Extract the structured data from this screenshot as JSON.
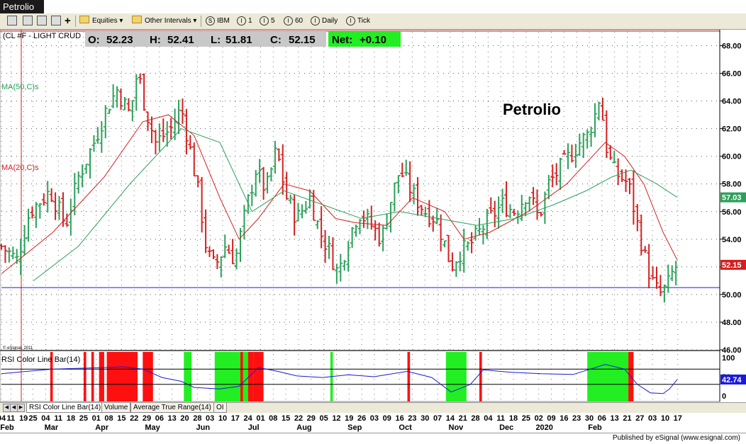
{
  "window": {
    "title": "Petrolio"
  },
  "toolbar": {
    "equities": "Equities",
    "other_intervals": "Other Intervals",
    "buttons": [
      {
        "icon": "S",
        "label": "IBM"
      },
      {
        "icon": "I",
        "label": "1"
      },
      {
        "icon": "I",
        "label": "5"
      },
      {
        "icon": "I",
        "label": "60"
      },
      {
        "icon": "I",
        "label": "Daily"
      },
      {
        "icon": "I",
        "label": "Tick"
      }
    ]
  },
  "chart_header": {
    "symbol": "(CL #F - LIGHT CRUD",
    "open_label": "O:",
    "open": "52.23",
    "high_label": "H:",
    "high": "52.41",
    "low_label": "L:",
    "low": "51.81",
    "close_label": "C:",
    "close": "52.15",
    "net_label": "Net:",
    "net": "+0.10",
    "ma50_label": "MA(50,C)s",
    "ma20_label": "MA(20,C)s",
    "annotation": "Petrolio",
    "copyright": "© eSignal, 2011"
  },
  "chart_data": [
    {
      "type": "bar",
      "subtype": "ohlc",
      "title": "Petrolio",
      "instrument": "(CL #F - LIGHT CRUD",
      "ylim": [
        46,
        69
      ],
      "y_ticks": [
        "46.00",
        "48.00",
        "50.00",
        "52.00",
        "54.00",
        "56.00",
        "58.00",
        "60.00",
        "62.00",
        "64.00",
        "66.00",
        "68.00"
      ],
      "last_labels": {
        "ma50": "57.03",
        "close": "52.15"
      },
      "colors": {
        "up": "#2ca05a",
        "down": "#d42020",
        "ma20": "#d42020",
        "ma50": "#2ca05a",
        "support": "#1a1ad8"
      },
      "support_level": 50.5,
      "bars": [
        {
          "day": 0,
          "close": 53.5
        },
        {
          "day": 12,
          "close": 52.5
        },
        {
          "day": 22,
          "close": 56.0
        },
        {
          "day": 38,
          "close": 57.5
        },
        {
          "day": 50,
          "close": 55.0
        },
        {
          "day": 60,
          "close": 58.5
        },
        {
          "day": 72,
          "close": 61.0
        },
        {
          "day": 82,
          "close": 63.5
        },
        {
          "day": 90,
          "close": 64.8
        },
        {
          "day": 100,
          "close": 63.0
        },
        {
          "day": 106,
          "close": 66.2
        },
        {
          "day": 112,
          "close": 63.5
        },
        {
          "day": 120,
          "close": 61.0
        },
        {
          "day": 132,
          "close": 62.0
        },
        {
          "day": 140,
          "close": 63.5
        },
        {
          "day": 148,
          "close": 60.0
        },
        {
          "day": 154,
          "close": 57.0
        },
        {
          "day": 160,
          "close": 53.0
        },
        {
          "day": 166,
          "close": 52.0
        },
        {
          "day": 174,
          "close": 53.5
        },
        {
          "day": 182,
          "close": 52.5
        },
        {
          "day": 190,
          "close": 56.0
        },
        {
          "day": 198,
          "close": 59.0
        },
        {
          "day": 206,
          "close": 57.5
        },
        {
          "day": 214,
          "close": 60.5
        },
        {
          "day": 222,
          "close": 57.0
        },
        {
          "day": 230,
          "close": 55.5
        },
        {
          "day": 240,
          "close": 57.0
        },
        {
          "day": 248,
          "close": 54.5
        },
        {
          "day": 256,
          "close": 53.0
        },
        {
          "day": 262,
          "close": 51.5
        },
        {
          "day": 270,
          "close": 54.0
        },
        {
          "day": 278,
          "close": 56.0
        },
        {
          "day": 288,
          "close": 55.0
        },
        {
          "day": 296,
          "close": 54.0
        },
        {
          "day": 302,
          "close": 56.5
        },
        {
          "day": 310,
          "close": 59.0
        },
        {
          "day": 316,
          "close": 58.0
        },
        {
          "day": 322,
          "close": 57.0
        },
        {
          "day": 330,
          "close": 56.0
        },
        {
          "day": 338,
          "close": 55.5
        },
        {
          "day": 344,
          "close": 54.0
        },
        {
          "day": 350,
          "close": 52.0
        },
        {
          "day": 356,
          "close": 53.0
        },
        {
          "day": 364,
          "close": 53.5
        },
        {
          "day": 372,
          "close": 54.5
        },
        {
          "day": 380,
          "close": 55.5
        },
        {
          "day": 390,
          "close": 56.5
        },
        {
          "day": 400,
          "close": 56.0
        },
        {
          "day": 410,
          "close": 57.5
        },
        {
          "day": 418,
          "close": 55.5
        },
        {
          "day": 426,
          "close": 58.0
        },
        {
          "day": 434,
          "close": 59.0
        },
        {
          "day": 442,
          "close": 60.0
        },
        {
          "day": 450,
          "close": 61.0
        },
        {
          "day": 456,
          "close": 61.5
        },
        {
          "day": 462,
          "close": 63.0
        },
        {
          "day": 466,
          "close": 64.5
        },
        {
          "day": 470,
          "close": 61.0
        },
        {
          "day": 476,
          "close": 59.0
        },
        {
          "day": 482,
          "close": 58.5
        },
        {
          "day": 488,
          "close": 58.0
        },
        {
          "day": 494,
          "close": 55.5
        },
        {
          "day": 500,
          "close": 53.0
        },
        {
          "day": 506,
          "close": 51.0
        },
        {
          "day": 512,
          "close": 50.0
        },
        {
          "day": 518,
          "close": 50.5
        },
        {
          "day": 522,
          "close": 51.5
        },
        {
          "day": 526,
          "close": 52.15
        }
      ],
      "ma20": [
        {
          "day": 0,
          "value": 51.5
        },
        {
          "day": 40,
          "value": 54.5
        },
        {
          "day": 80,
          "value": 58.5
        },
        {
          "day": 110,
          "value": 62.5
        },
        {
          "day": 130,
          "value": 63.0
        },
        {
          "day": 150,
          "value": 61.5
        },
        {
          "day": 170,
          "value": 57.0
        },
        {
          "day": 185,
          "value": 54.0
        },
        {
          "day": 200,
          "value": 55.5
        },
        {
          "day": 220,
          "value": 58.0
        },
        {
          "day": 240,
          "value": 57.5
        },
        {
          "day": 260,
          "value": 55.5
        },
        {
          "day": 275,
          "value": 55.2
        },
        {
          "day": 300,
          "value": 55.0
        },
        {
          "day": 320,
          "value": 57.0
        },
        {
          "day": 345,
          "value": 56.0
        },
        {
          "day": 360,
          "value": 54.0
        },
        {
          "day": 380,
          "value": 54.5
        },
        {
          "day": 410,
          "value": 56.0
        },
        {
          "day": 440,
          "value": 58.0
        },
        {
          "day": 460,
          "value": 60.0
        },
        {
          "day": 470,
          "value": 61.0
        },
        {
          "day": 485,
          "value": 60.0
        },
        {
          "day": 500,
          "value": 58.0
        },
        {
          "day": 515,
          "value": 54.5
        },
        {
          "day": 526,
          "value": 52.5
        }
      ],
      "ma50": [
        {
          "day": 25,
          "value": 51.0
        },
        {
          "day": 60,
          "value": 53.5
        },
        {
          "day": 100,
          "value": 58.0
        },
        {
          "day": 140,
          "value": 62.0
        },
        {
          "day": 170,
          "value": 61.0
        },
        {
          "day": 195,
          "value": 56.0
        },
        {
          "day": 220,
          "value": 57.5
        },
        {
          "day": 250,
          "value": 56.5
        },
        {
          "day": 280,
          "value": 55.5
        },
        {
          "day": 310,
          "value": 56.0
        },
        {
          "day": 340,
          "value": 55.5
        },
        {
          "day": 370,
          "value": 55.0
        },
        {
          "day": 400,
          "value": 55.5
        },
        {
          "day": 430,
          "value": 56.5
        },
        {
          "day": 455,
          "value": 57.5
        },
        {
          "day": 475,
          "value": 58.5
        },
        {
          "day": 490,
          "value": 59.0
        },
        {
          "day": 510,
          "value": 58.0
        },
        {
          "day": 526,
          "value": 57.03
        }
      ]
    },
    {
      "type": "line",
      "title": "RSI Color Line Bar(14)",
      "ylim": [
        0,
        100
      ],
      "y_ticks": [
        "0",
        "50",
        "100"
      ],
      "levels": [
        70,
        30
      ],
      "last_value": "42.74",
      "overbought_color": "#ff1010",
      "oversold_color": "#22ee22",
      "overbought_zones": [
        [
          38,
          40
        ],
        [
          64,
          66
        ],
        [
          70,
          72
        ],
        [
          76,
          80
        ],
        [
          82,
          106
        ],
        [
          110,
          118
        ],
        [
          182,
          196
        ],
        [
          196,
          204
        ],
        [
          316,
          318
        ],
        [
          372,
          374
        ],
        [
          470,
          484
        ],
        [
          486,
          492
        ]
      ],
      "oversold_zones": [
        [
          142,
          148
        ],
        [
          166,
          186
        ],
        [
          188,
          192
        ],
        [
          256,
          258
        ],
        [
          346,
          362
        ],
        [
          456,
          488
        ]
      ],
      "rsi": [
        {
          "day": 0,
          "value": 58
        },
        {
          "day": 20,
          "value": 64
        },
        {
          "day": 40,
          "value": 70
        },
        {
          "day": 60,
          "value": 72
        },
        {
          "day": 80,
          "value": 74
        },
        {
          "day": 95,
          "value": 76
        },
        {
          "day": 110,
          "value": 70
        },
        {
          "day": 125,
          "value": 48
        },
        {
          "day": 140,
          "value": 38
        },
        {
          "day": 150,
          "value": 22
        },
        {
          "day": 170,
          "value": 18
        },
        {
          "day": 185,
          "value": 25
        },
        {
          "day": 200,
          "value": 74
        },
        {
          "day": 215,
          "value": 64
        },
        {
          "day": 230,
          "value": 52
        },
        {
          "day": 250,
          "value": 48
        },
        {
          "day": 270,
          "value": 55
        },
        {
          "day": 290,
          "value": 50
        },
        {
          "day": 316,
          "value": 64
        },
        {
          "day": 335,
          "value": 48
        },
        {
          "day": 350,
          "value": 10
        },
        {
          "day": 365,
          "value": 30
        },
        {
          "day": 375,
          "value": 68
        },
        {
          "day": 395,
          "value": 62
        },
        {
          "day": 420,
          "value": 58
        },
        {
          "day": 445,
          "value": 56
        },
        {
          "day": 470,
          "value": 82
        },
        {
          "day": 485,
          "value": 70
        },
        {
          "day": 495,
          "value": 30
        },
        {
          "day": 505,
          "value": 8
        },
        {
          "day": 515,
          "value": 6
        },
        {
          "day": 520,
          "value": 18
        },
        {
          "day": 526,
          "value": 42.74
        }
      ]
    }
  ],
  "x_axis": {
    "day_ticks": [
      {
        "day": 0,
        "label": "04"
      },
      {
        "day": 6,
        "label": "11"
      },
      {
        "day": 14,
        "label": "19"
      },
      {
        "day": 20,
        "label": "25"
      },
      {
        "day": 28,
        "label": "04"
      },
      {
        "day": 36,
        "label": "11"
      },
      {
        "day": 44,
        "label": "18"
      },
      {
        "day": 52,
        "label": "25"
      },
      {
        "day": 60,
        "label": "01"
      },
      {
        "day": 68,
        "label": "08"
      },
      {
        "day": 76,
        "label": "15"
      },
      {
        "day": 84,
        "label": "22"
      },
      {
        "day": 92,
        "label": "29"
      },
      {
        "day": 100,
        "label": "06"
      },
      {
        "day": 108,
        "label": "13"
      },
      {
        "day": 116,
        "label": "20"
      },
      {
        "day": 124,
        "label": "28"
      },
      {
        "day": 132,
        "label": "03"
      },
      {
        "day": 140,
        "label": "10"
      },
      {
        "day": 148,
        "label": "17"
      },
      {
        "day": 156,
        "label": "24"
      },
      {
        "day": 164,
        "label": "01"
      },
      {
        "day": 172,
        "label": "08"
      },
      {
        "day": 180,
        "label": "15"
      },
      {
        "day": 188,
        "label": "22"
      },
      {
        "day": 196,
        "label": "29"
      },
      {
        "day": 204,
        "label": "05"
      },
      {
        "day": 212,
        "label": "12"
      },
      {
        "day": 220,
        "label": "19"
      },
      {
        "day": 228,
        "label": "26"
      },
      {
        "day": 236,
        "label": "03"
      },
      {
        "day": 244,
        "label": "09"
      },
      {
        "day": 252,
        "label": "16"
      },
      {
        "day": 260,
        "label": "23"
      },
      {
        "day": 268,
        "label": "30"
      },
      {
        "day": 276,
        "label": "07"
      },
      {
        "day": 284,
        "label": "14"
      },
      {
        "day": 292,
        "label": "21"
      },
      {
        "day": 300,
        "label": "28"
      },
      {
        "day": 308,
        "label": "04"
      },
      {
        "day": 316,
        "label": "11"
      },
      {
        "day": 324,
        "label": "18"
      },
      {
        "day": 332,
        "label": "25"
      },
      {
        "day": 340,
        "label": "02"
      },
      {
        "day": 348,
        "label": "09"
      },
      {
        "day": 356,
        "label": "16"
      },
      {
        "day": 364,
        "label": "23"
      },
      {
        "day": 372,
        "label": "30"
      },
      {
        "day": 380,
        "label": "06"
      },
      {
        "day": 388,
        "label": "13"
      },
      {
        "day": 396,
        "label": "21"
      },
      {
        "day": 404,
        "label": "27"
      },
      {
        "day": 412,
        "label": "03"
      },
      {
        "day": 420,
        "label": "10"
      },
      {
        "day": 428,
        "label": "17"
      }
    ],
    "month_labels": [
      {
        "day": 0,
        "label": "Feb"
      },
      {
        "day": 28,
        "label": "Mar"
      },
      {
        "day": 60,
        "label": "Apr"
      },
      {
        "day": 92,
        "label": "May"
      },
      {
        "day": 124,
        "label": "Jun"
      },
      {
        "day": 156,
        "label": "Jul"
      },
      {
        "day": 188,
        "label": "Aug"
      },
      {
        "day": 220,
        "label": "Sep"
      },
      {
        "day": 252,
        "label": "Oct"
      },
      {
        "day": 284,
        "label": "Nov"
      },
      {
        "day": 316,
        "label": "Dec"
      },
      {
        "day": 340,
        "label": "2020"
      },
      {
        "day": 372,
        "label": "Feb"
      }
    ]
  },
  "tabs": [
    "RSI Color Line Bar(14)",
    "Volume",
    "Average True Range(14)",
    "OI"
  ],
  "footer": {
    "published": "Published by eSignal (www.esignal.com)"
  }
}
